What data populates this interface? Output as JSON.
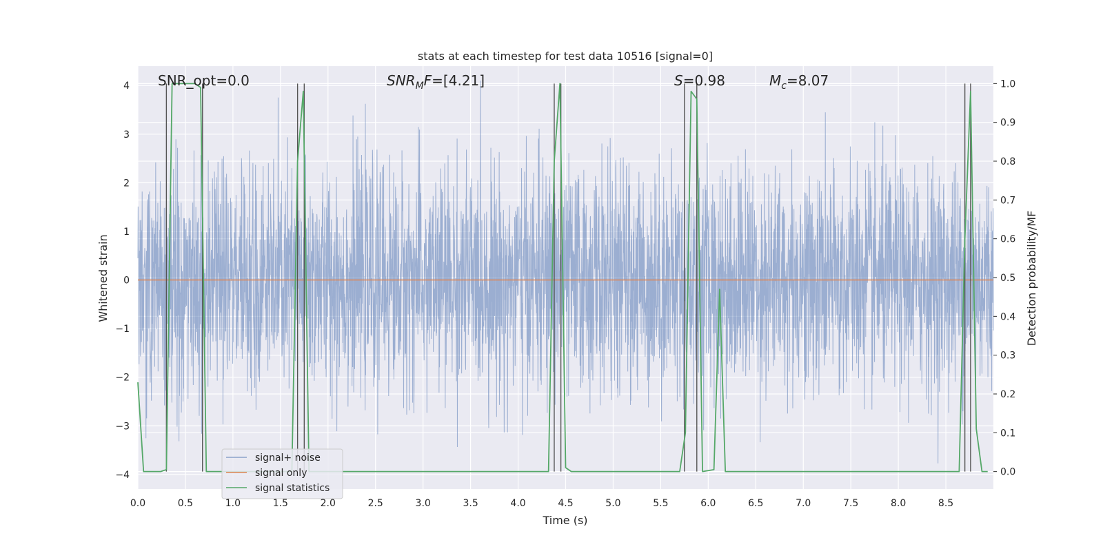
{
  "chart_data": {
    "type": "line",
    "title": "stats at each timestep for test data 10516 [signal=0]",
    "xlabel": "Time (s)",
    "ylabel_left": "Whitened strain",
    "ylabel_right": "Detection probability/MF",
    "xlim": [
      0.0,
      9.0
    ],
    "ylim_left": [
      -4.3,
      4.4
    ],
    "ylim_right": [
      -0.045,
      1.045
    ],
    "x_ticks": [
      "0.0",
      "0.5",
      "1.0",
      "1.5",
      "2.0",
      "2.5",
      "3.0",
      "3.5",
      "4.0",
      "4.5",
      "5.0",
      "5.5",
      "6.0",
      "6.5",
      "7.0",
      "7.5",
      "8.0",
      "8.5"
    ],
    "y_ticks_left": [
      "4",
      "3",
      "2",
      "1",
      "0",
      "−1",
      "−2",
      "−3",
      "−4"
    ],
    "y_ticks_right": [
      "1.0",
      "0.9",
      "0.8",
      "0.7",
      "0.6",
      "0.5",
      "0.4",
      "0.3",
      "0.2",
      "0.1",
      "0.0"
    ],
    "annotations": {
      "snr_opt": "SNR_opt=0.0",
      "snr_mf_sym": "SNR",
      "snr_mf_sub": "M",
      "snr_mf_f": "F",
      "snr_mf_val": "=[4.21]",
      "s_sym": "S",
      "s_val": "=0.98",
      "mc_sym": "M",
      "mc_sub": "c",
      "mc_val": "=8.07"
    },
    "legend": {
      "placement": "lower-left",
      "entries": [
        "signal+ noise",
        "signal only",
        "signal statistics"
      ]
    },
    "colors": {
      "plot_bg": "#eaeaf2",
      "grid": "#ffffff",
      "signal_noise": "#4c72b0",
      "signal_only": "#dd8452",
      "signal_statistics": "#55a868",
      "vlines": "#555555"
    },
    "series": [
      {
        "name": "signal+ noise",
        "description": "dense whitened strain noise, amplitude mostly within ±2.5, peaks to about ±3.3",
        "envelope_abs": 2.5
      },
      {
        "name": "signal only",
        "x": [
          0.0,
          9.0
        ],
        "values": [
          0.0,
          0.0
        ]
      },
      {
        "name": "signal statistics",
        "x": [
          0.0,
          0.06,
          0.12,
          0.24,
          0.3,
          0.36,
          0.42,
          0.48,
          0.54,
          0.6,
          0.66,
          0.72,
          0.78,
          1.62,
          1.68,
          1.74,
          1.8,
          1.86,
          4.32,
          4.38,
          4.44,
          4.5,
          4.56,
          5.7,
          5.76,
          5.82,
          5.88,
          5.94,
          6.06,
          6.12,
          6.18,
          8.64,
          8.7,
          8.76,
          8.82,
          8.88,
          8.94
        ],
        "values": [
          0.23,
          0.0,
          0.0,
          0.0,
          0.005,
          1.0,
          1.0,
          1.0,
          1.0,
          1.0,
          0.99,
          0.0,
          0.0,
          0.0,
          0.8,
          0.98,
          0.0,
          0.0,
          0.0,
          0.8,
          1.0,
          0.01,
          0.0,
          0.0,
          0.1,
          0.98,
          0.96,
          0.0,
          0.005,
          0.47,
          0.0,
          0.0,
          0.6,
          0.98,
          0.11,
          0.0,
          0.0
        ]
      }
    ],
    "vertical_lines_x": [
      0.3,
      0.68,
      1.68,
      1.75,
      4.38,
      4.45,
      5.75,
      5.88,
      8.7,
      8.76
    ]
  }
}
